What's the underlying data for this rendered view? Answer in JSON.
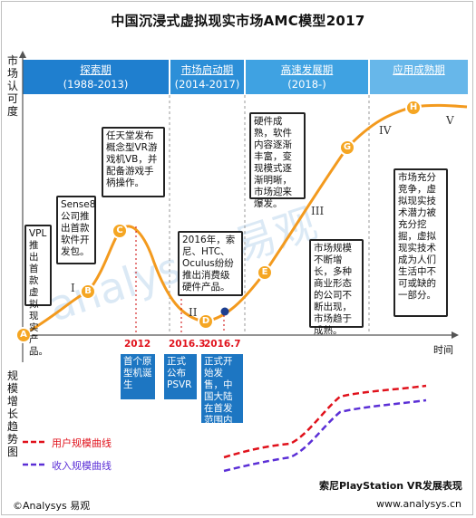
{
  "title": "中国沉浸式虚拟现实市场AMC模型2017",
  "y_axis_top": "市场认可度",
  "y_axis_bottom": "规模增长趋势图",
  "x_axis_label": "时间",
  "phases": [
    {
      "name": "探索期",
      "range": "(1988-2013)",
      "color": "#1f7fcf"
    },
    {
      "name": "市场启动期",
      "range": "(2014-2017)",
      "color": "#2c8fd8"
    },
    {
      "name": "高速发展期",
      "range": "(2018-)",
      "color": "#3fa2e2"
    },
    {
      "name": "应用成熟期",
      "range": "",
      "color": "#67b7ea"
    }
  ],
  "curve_points": [
    {
      "label": "A"
    },
    {
      "label": "B"
    },
    {
      "label": "C"
    },
    {
      "label": "D"
    },
    {
      "label": "E"
    },
    {
      "label": "G"
    },
    {
      "label": "H"
    }
  ],
  "roman_numerals": [
    "I",
    "II",
    "III",
    "IV",
    "V"
  ],
  "notes": {
    "a": "VPL推出首款虚拟现实产品。",
    "b": "Sense8公司推出首款软件开发包。",
    "c": "任天堂发布概念型VR游戏机VB，并配备游戏手柄操作。",
    "d": "2016年，索尼、HTC、Oculus纷纷推出消费级硬件产品。",
    "e": "硬件成熟，软件内容逐渐丰富，变现模式逐渐明晰，市场迎来爆发。",
    "g": "市场规模不断增长，多种商业形态的公司不断出现，市场趋于成熟。",
    "h": "市场充分竞争，虚拟现实技术潜力被充分挖掘，虚拟现实技术成为人们生活中不可或缺的一部分。"
  },
  "years": [
    "2012",
    "2016.3",
    "2016.7"
  ],
  "year_notes": [
    "首个原型机诞生",
    "正式公布PSVR",
    "正式开始发售，中国大陆在首发范围内"
  ],
  "legend": [
    {
      "label": "用户规模曲线",
      "color": "#e0111b"
    },
    {
      "label": "收入规模曲线",
      "color": "#5b2fd6"
    }
  ],
  "chart_caption": "索尼PlayStation VR发展表现",
  "copyright": "©Analysys 易观",
  "website": "www.analysys.cn",
  "watermark": "analysys 易观",
  "chart_data": {
    "type": "line",
    "title": "中国沉浸式虚拟现实市场AMC模型2017",
    "xlabel": "时间",
    "ylabel": "市场认可度",
    "series": [
      {
        "name": "用户规模曲线",
        "values": [
          0.2,
          0.25,
          0.42,
          0.6,
          0.68,
          0.72,
          0.85,
          0.92
        ]
      },
      {
        "name": "收入规模曲线",
        "values": [
          0.05,
          0.1,
          0.18,
          0.3,
          0.45,
          0.6,
          0.72,
          0.78
        ]
      }
    ],
    "x": [
      1,
      2,
      3,
      4,
      5,
      6,
      7,
      8
    ]
  }
}
